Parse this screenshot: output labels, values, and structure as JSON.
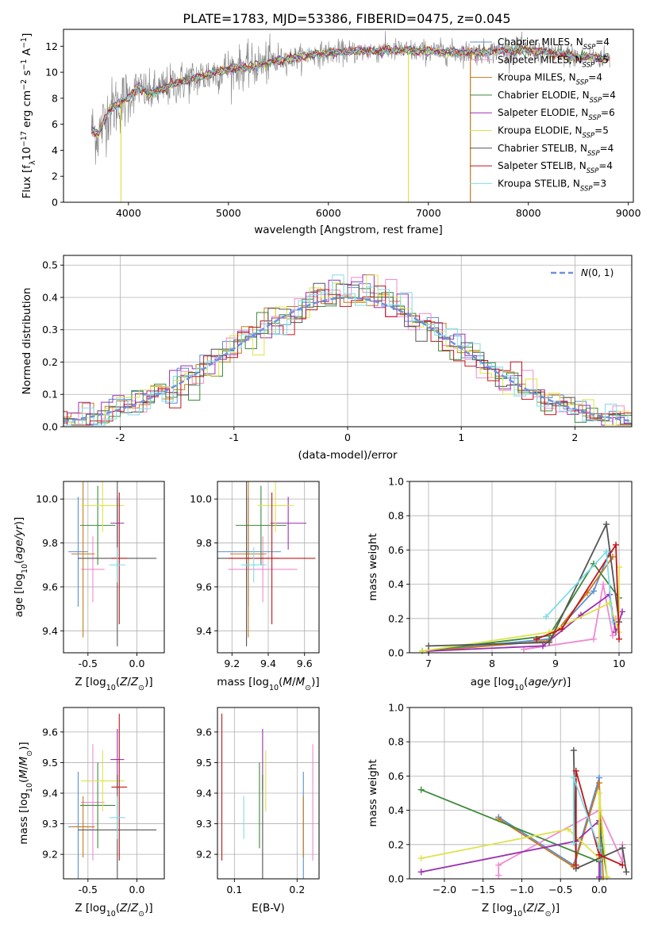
{
  "figure_title": "PLATE=1783, MJD=53386, FIBERID=0475, z=0.045",
  "colors": {
    "Chabrier MILES": "#5b8fd6",
    "Salpeter MILES": "#f08ad0",
    "Kroupa MILES": "#c87a1a",
    "Chabrier ELODIE": "#3d8a3d",
    "Salpeter ELODIE": "#9b30b0",
    "Kroupa ELODIE": "#dde34a",
    "Chabrier STELIB": "#555555",
    "Salpeter STELIB": "#c0171b",
    "Kroupa STELIB": "#7fdde8",
    "data": "#808080",
    "gauss": "#6f8fde",
    "grid": "#b0b0b0"
  },
  "chart_data": [
    {
      "type": "line",
      "id": "spectrum",
      "xlabel": "wavelength [Angstrom, rest frame]",
      "ylabel": "Flux [f_λ10^-17 erg cm^-2 s^-1 A^-1]",
      "xlim": [
        3350,
        9050
      ],
      "ylim": [
        0,
        13.3
      ],
      "xticks": [
        4000,
        5000,
        6000,
        7000,
        8000,
        9000
      ],
      "yticks": [
        0,
        2,
        4,
        6,
        8,
        10,
        12
      ],
      "grid": false,
      "legend": "upper right",
      "x_range_data": [
        3630,
        8820
      ],
      "continuum_shape": [
        [
          3630,
          5.6
        ],
        [
          3700,
          5.2
        ],
        [
          3800,
          7.0
        ],
        [
          3900,
          7.6
        ],
        [
          4000,
          8.0
        ],
        [
          4100,
          8.9
        ],
        [
          4200,
          8.3
        ],
        [
          4300,
          8.6
        ],
        [
          4500,
          9.2
        ],
        [
          4800,
          9.8
        ],
        [
          5000,
          10.3
        ],
        [
          5200,
          10.4
        ],
        [
          5500,
          10.9
        ],
        [
          5800,
          11.3
        ],
        [
          6000,
          11.5
        ],
        [
          6300,
          11.6
        ],
        [
          6600,
          11.7
        ],
        [
          7000,
          11.6
        ],
        [
          7500,
          11.5
        ],
        [
          7800,
          11.7
        ],
        [
          8000,
          11.7
        ],
        [
          8200,
          11.5
        ],
        [
          8500,
          11.2
        ],
        [
          8820,
          11.1
        ]
      ],
      "model_labels": [
        "Chabrier MILES, N_SSP=4",
        "Salpeter MILES, N_SSP=5",
        "Kroupa MILES, N_SSP=4",
        "Chabrier ELODIE, N_SSP=4",
        "Salpeter ELODIE, N_SSP=6",
        "Kroupa ELODIE, N_SSP=5",
        "Chabrier STELIB, N_SSP=4",
        "Salpeter STELIB, N_SSP=4",
        "Kroupa STELIB, N_SSP=3"
      ]
    },
    {
      "type": "line",
      "id": "residuals",
      "xlabel": "(data-model)/error",
      "ylabel": "Normed distribution",
      "xlim": [
        -2.5,
        2.5
      ],
      "ylim": [
        0,
        0.53
      ],
      "xticks": [
        -2,
        -1,
        0,
        1,
        2
      ],
      "yticks": [
        0.0,
        0.1,
        0.2,
        0.3,
        0.4,
        0.5
      ],
      "grid": true,
      "legend": "upper right",
      "legend_label": "N(0,1)",
      "gaussian": {
        "mean": 0,
        "sigma": 1
      },
      "bin_width": 0.1
    },
    {
      "type": "scatter",
      "id": "age_vs_Z",
      "xlabel": "Z [log10(Z/Z⊙)]",
      "ylabel": "age [log10(age/yr)]",
      "xlim": [
        -0.75,
        0.28
      ],
      "ylim": [
        9.3,
        10.08
      ],
      "xticks": [
        -0.5,
        0.0
      ],
      "yticks": [
        9.4,
        9.6,
        9.8,
        10.0
      ],
      "grid": true
    },
    {
      "type": "scatter",
      "id": "age_vs_mass",
      "xlabel": "mass [log10(M/M⊙)]",
      "ylabel": "",
      "xlim": [
        9.12,
        9.68
      ],
      "ylim": [
        9.3,
        10.08
      ],
      "xticks": [
        9.2,
        9.4,
        9.6
      ],
      "yticks": [
        9.4,
        9.6,
        9.8,
        10.0
      ],
      "grid": true
    },
    {
      "type": "line",
      "id": "weight_vs_age",
      "xlabel": "age [log10(age/yr)]",
      "ylabel": "mass weight",
      "xlim": [
        6.7,
        10.2
      ],
      "ylim": [
        0,
        1.0
      ],
      "xticks": [
        7,
        8,
        9,
        10
      ],
      "yticks": [
        0.0,
        0.2,
        0.4,
        0.6,
        0.8,
        1.0
      ],
      "grid": true
    },
    {
      "type": "scatter",
      "id": "mass_vs_Z",
      "xlabel": "Z [log10(Z/Z⊙)]",
      "ylabel": "mass [log10(M/M⊙)]",
      "xlim": [
        -0.75,
        0.28
      ],
      "ylim": [
        9.12,
        9.68
      ],
      "xticks": [
        -0.5,
        0.0
      ],
      "yticks": [
        9.2,
        9.3,
        9.4,
        9.5,
        9.6
      ],
      "grid": true
    },
    {
      "type": "scatter",
      "id": "mass_vs_ebv",
      "xlabel": "E(B-V)",
      "ylabel": "",
      "xlim": [
        0.073,
        0.235
      ],
      "ylim": [
        9.12,
        9.68
      ],
      "xticks": [
        0.1,
        0.2
      ],
      "yticks": [
        9.2,
        9.3,
        9.4,
        9.5,
        9.6
      ],
      "grid": true
    },
    {
      "type": "line",
      "id": "weight_vs_Z",
      "xlabel": "Z [log10(Z/Z⊙)]",
      "ylabel": "mass weight",
      "xlim": [
        -2.45,
        0.42
      ],
      "ylim": [
        0,
        1.0
      ],
      "xticks": [
        -2.0,
        -1.5,
        -1.0,
        -0.5,
        0.0
      ],
      "yticks": [
        0.0,
        0.2,
        0.4,
        0.6,
        0.8,
        1.0
      ],
      "grid": true
    }
  ],
  "models": [
    {
      "name": "Chabrier MILES",
      "mean": {
        "Z": -0.6,
        "age": 9.76,
        "mass": 9.29,
        "ebv": 0.21
      },
      "err": {
        "Z": 0.1,
        "age": 0.25,
        "mass": 0.18
      },
      "ssp": [
        {
          "age": 8.9,
          "Z": -0.33,
          "w": 0.08
        },
        {
          "age": 9.6,
          "Z": -1.3,
          "w": 0.36
        },
        {
          "age": 9.85,
          "Z": 0.0,
          "w": 0.59
        },
        {
          "age": 6.9,
          "Z": 0.02,
          "w": 0.01
        }
      ]
    },
    {
      "name": "Salpeter MILES",
      "mean": {
        "Z": -0.45,
        "age": 9.68,
        "mass": 9.37,
        "ebv": 0.225
      },
      "err": {
        "Z": 0.12,
        "age": 0.15,
        "mass": 0.19
      },
      "ssp": [
        {
          "age": 8.5,
          "Z": -1.3,
          "w": 0.02
        },
        {
          "age": 9.6,
          "Z": -1.3,
          "w": 0.08
        },
        {
          "age": 9.75,
          "Z": 0.0,
          "w": 0.4
        },
        {
          "age": 9.9,
          "Z": 0.3,
          "w": 0.1
        },
        {
          "age": 9.95,
          "Z": 0.3,
          "w": 0.2
        }
      ]
    },
    {
      "name": "Kroupa MILES",
      "mean": {
        "Z": -0.55,
        "age": 9.75,
        "mass": 9.29,
        "ebv": 0.21
      },
      "err": {
        "Z": 0.12,
        "age": 0.38,
        "mass": 0.1
      },
      "ssp": [
        {
          "age": 8.9,
          "Z": -0.33,
          "w": 0.07
        },
        {
          "age": 9.5,
          "Z": -1.3,
          "w": 0.35
        },
        {
          "age": 9.9,
          "Z": 0.0,
          "w": 0.56
        },
        {
          "age": 7.0,
          "Z": 0.05,
          "w": 0.01
        }
      ]
    },
    {
      "name": "Chabrier ELODIE",
      "mean": {
        "Z": -0.4,
        "age": 9.88,
        "mass": 9.36,
        "ebv": 0.14
      },
      "err": {
        "Z": 0.18,
        "age": 0.18,
        "mass": 0.14
      },
      "ssp": [
        {
          "age": 8.9,
          "Z": 0.0,
          "w": 0.1
        },
        {
          "age": 9.6,
          "Z": -2.3,
          "w": 0.52
        },
        {
          "age": 10.0,
          "Z": 0.0,
          "w": 0.32
        },
        {
          "age": 6.9,
          "Z": 0.1,
          "w": 0.01
        }
      ]
    },
    {
      "name": "Salpeter ELODIE",
      "mean": {
        "Z": -0.2,
        "age": 9.89,
        "mass": 9.51,
        "ebv": 0.145
      },
      "err": {
        "Z": 0.07,
        "age": 0.12,
        "mass": 0.1
      },
      "ssp": [
        {
          "age": 8.8,
          "Z": -2.3,
          "w": 0.04
        },
        {
          "age": 9.4,
          "Z": -0.3,
          "w": 0.22
        },
        {
          "age": 9.85,
          "Z": 0.0,
          "w": 0.34
        },
        {
          "age": 10.05,
          "Z": 0.0,
          "w": 0.24
        },
        {
          "age": 9.95,
          "Z": 0.0,
          "w": 0.12
        },
        {
          "age": 7.0,
          "Z": 0.0,
          "w": 0.01
        }
      ]
    },
    {
      "name": "Kroupa ELODIE",
      "mean": {
        "Z": -0.35,
        "age": 9.97,
        "mass": 9.44,
        "ebv": 0.15
      },
      "err": {
        "Z": 0.22,
        "age": 0.12,
        "mass": 0.1
      },
      "ssp": [
        {
          "age": 8.9,
          "Z": -2.3,
          "w": 0.12
        },
        {
          "age": 9.85,
          "Z": -0.4,
          "w": 0.29
        },
        {
          "age": 10.0,
          "Z": 0.0,
          "w": 0.12
        },
        {
          "age": 10.0,
          "Z": 0.0,
          "w": 0.5
        },
        {
          "age": 6.9,
          "Z": 0.1,
          "w": 0.01
        }
      ]
    },
    {
      "name": "Chabrier STELIB",
      "mean": {
        "Z": -0.2,
        "age": 9.73,
        "mass": 9.28,
        "ebv": 0.145
      },
      "err": {
        "Z": 0.4,
        "age": 0.4,
        "mass": 0.18
      },
      "ssp": [
        {
          "age": 8.9,
          "Z": -0.3,
          "w": 0.06
        },
        {
          "age": 9.8,
          "Z": -0.33,
          "w": 0.75
        },
        {
          "age": 10.0,
          "Z": 0.3,
          "w": 0.18
        },
        {
          "age": 7.0,
          "Z": 0.35,
          "w": 0.04
        }
      ]
    },
    {
      "name": "Salpeter STELIB",
      "mean": {
        "Z": -0.18,
        "age": 9.73,
        "mass": 9.42,
        "ebv": 0.08
      },
      "err": {
        "Z": 0.08,
        "age": 0.3,
        "mass": 0.24
      },
      "ssp": [
        {
          "age": 8.7,
          "Z": -0.3,
          "w": 0.08
        },
        {
          "age": 9.1,
          "Z": 0.0,
          "w": 0.14
        },
        {
          "age": 9.95,
          "Z": -0.3,
          "w": 0.63
        },
        {
          "age": 10.0,
          "Z": 0.3,
          "w": 0.08
        }
      ]
    },
    {
      "name": "Kroupa STELIB",
      "mean": {
        "Z": -0.2,
        "age": 9.7,
        "mass": 9.32,
        "ebv": 0.115
      },
      "err": {
        "Z": 0.08,
        "age": 0.08,
        "mass": 0.07
      },
      "ssp": [
        {
          "age": 8.85,
          "Z": -0.33,
          "w": 0.21
        },
        {
          "age": 9.8,
          "Z": -0.33,
          "w": 0.59
        },
        {
          "age": 9.9,
          "Z": 0.0,
          "w": 0.18
        }
      ]
    }
  ]
}
